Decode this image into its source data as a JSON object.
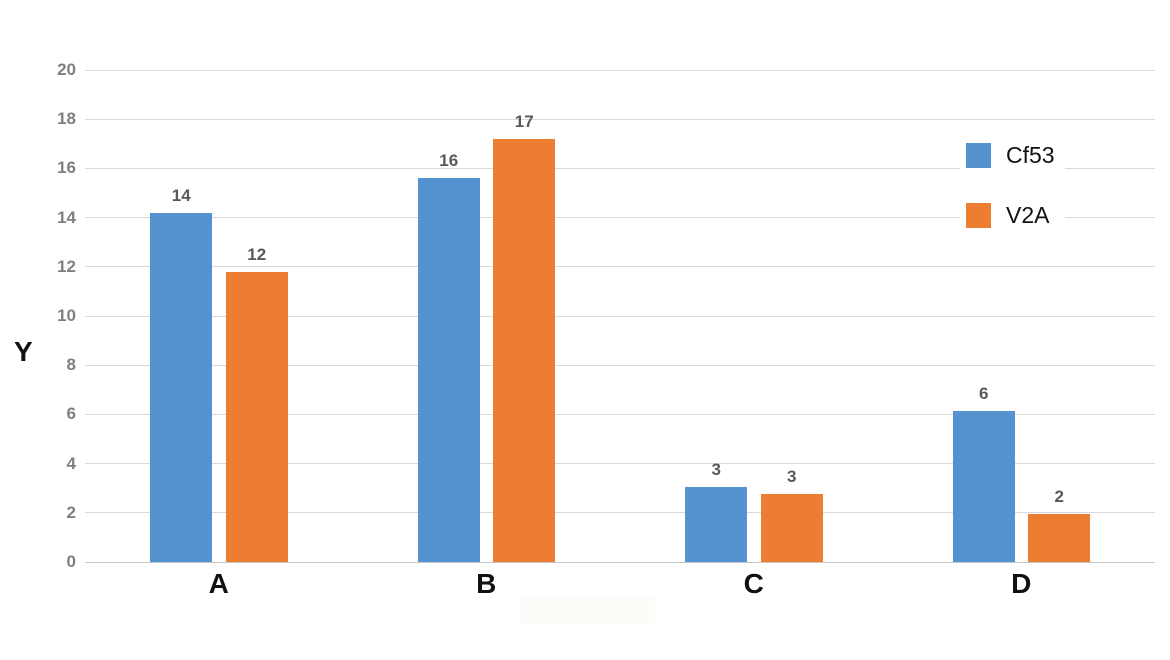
{
  "chart_data": {
    "type": "bar",
    "title": "",
    "xlabel": "",
    "ylabel": "Y",
    "categories": [
      "A",
      "B",
      "C",
      "D"
    ],
    "series": [
      {
        "name": "Cf53",
        "color": "#5592D0",
        "values": [
          14,
          16,
          3,
          6
        ],
        "drawn_values": [
          14.2,
          15.6,
          3.05,
          6.15
        ]
      },
      {
        "name": "V2A",
        "color": "#EC7D31",
        "values": [
          12,
          17,
          3,
          2
        ],
        "drawn_values": [
          11.8,
          17.2,
          2.75,
          1.95
        ]
      }
    ],
    "ylim": [
      0,
      20
    ],
    "ytick_step": 2,
    "grid": true,
    "data_labels": true,
    "legend_position": "top-right",
    "colors": {
      "grid": "#d9d9d9",
      "axis_line": "#c6c6c6",
      "tick_label": "#7f7f7f",
      "data_label": "#595959",
      "category_label": "#111111",
      "background": "#ffffff"
    }
  }
}
